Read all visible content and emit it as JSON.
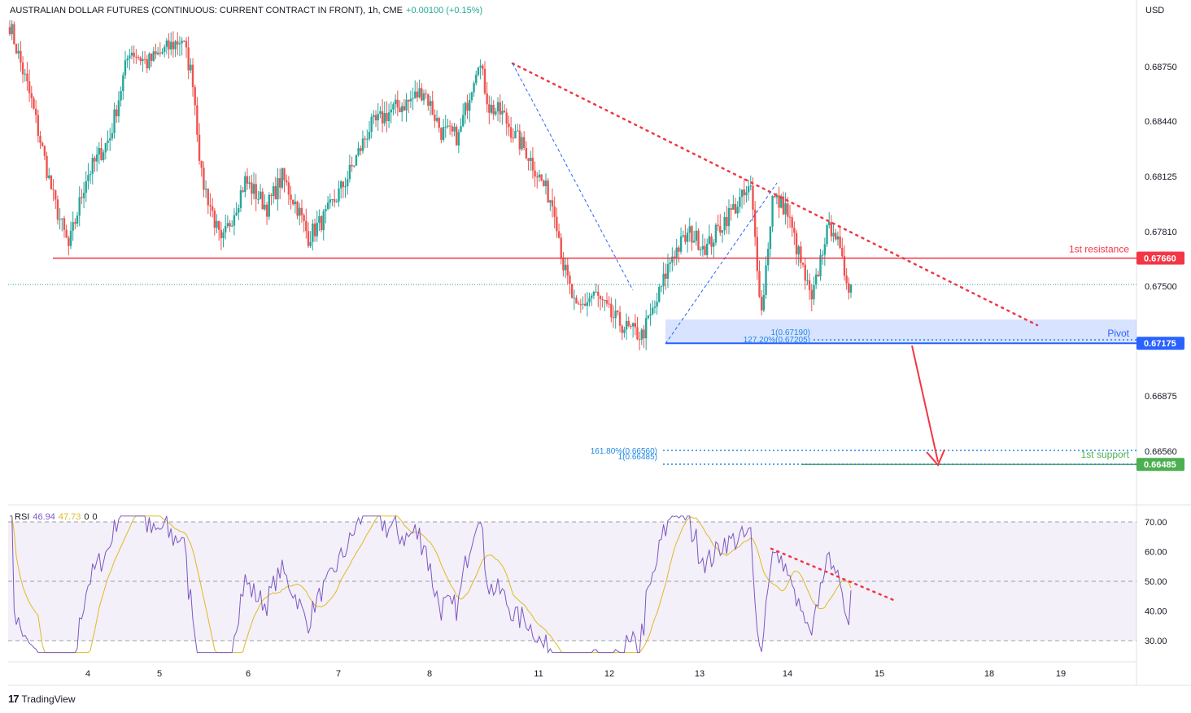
{
  "header": {
    "title": "AUSTRALIAN DOLLAR FUTURES (CONTINUOUS: CURRENT CONTRACT IN FRONT), 1h, CME",
    "change": "+0.00100 (+0.15%)",
    "currency": "USD"
  },
  "rsi": {
    "label": "RSI",
    "value": "46.94",
    "ma_value": "47.73",
    "extra1": "0",
    "extra2": "0"
  },
  "branding": {
    "name": "TradingView"
  },
  "colors": {
    "up": "#26a69a",
    "down": "#ef5350",
    "resistance": "#f23645",
    "pivot": "#2962ff",
    "support": "#4caf50",
    "rsi_line": "#7e57c2",
    "rsi_ma": "#e0b926",
    "fib": "#1e88e5"
  },
  "chart_data": [
    {
      "type": "candlestick",
      "symbol": "Australian Dollar Futures",
      "timeframe": "1h",
      "x_tick_labels": [
        "4",
        "5",
        "6",
        "7",
        "8",
        "11",
        "12",
        "13",
        "14",
        "15",
        "18",
        "19"
      ],
      "y_tick_labels": [
        "0.68750",
        "0.68440",
        "0.68125",
        "0.67810",
        "0.67500",
        "0.66875",
        "0.66560"
      ],
      "ylim": [
        0.6612,
        0.6906
      ],
      "waypoints": [
        [
          0,
          0.6899
        ],
        [
          10,
          0.6855
        ],
        [
          20,
          0.68
        ],
        [
          27,
          0.6772
        ],
        [
          35,
          0.6812
        ],
        [
          46,
          0.6835
        ],
        [
          55,
          0.6885
        ],
        [
          63,
          0.6877
        ],
        [
          73,
          0.6886
        ],
        [
          79,
          0.6891
        ],
        [
          84,
          0.6868
        ],
        [
          88,
          0.6812
        ],
        [
          93,
          0.6792
        ],
        [
          97,
          0.6773
        ],
        [
          108,
          0.681
        ],
        [
          118,
          0.6795
        ],
        [
          125,
          0.6812
        ],
        [
          132,
          0.6795
        ],
        [
          137,
          0.6778
        ],
        [
          145,
          0.679
        ],
        [
          155,
          0.6812
        ],
        [
          165,
          0.684
        ],
        [
          175,
          0.685
        ],
        [
          183,
          0.6855
        ],
        [
          190,
          0.6862
        ],
        [
          198,
          0.6838
        ],
        [
          206,
          0.6835
        ],
        [
          215,
          0.688
        ],
        [
          220,
          0.6852
        ],
        [
          226,
          0.6848
        ],
        [
          232,
          0.6835
        ],
        [
          237,
          0.6827
        ],
        [
          243,
          0.6812
        ],
        [
          250,
          0.6795
        ],
        [
          254,
          0.6762
        ],
        [
          260,
          0.6735
        ],
        [
          268,
          0.6746
        ],
        [
          276,
          0.6733
        ],
        [
          284,
          0.6725
        ],
        [
          290,
          0.6722
        ],
        [
          296,
          0.6738
        ],
        [
          304,
          0.6768
        ],
        [
          312,
          0.678
        ],
        [
          320,
          0.6772
        ],
        [
          328,
          0.6788
        ],
        [
          336,
          0.68
        ],
        [
          340,
          0.6805
        ],
        [
          345,
          0.6735
        ],
        [
          350,
          0.68
        ],
        [
          356,
          0.6795
        ],
        [
          362,
          0.6768
        ],
        [
          368,
          0.674
        ],
        [
          374,
          0.6778
        ],
        [
          378,
          0.6785
        ],
        [
          382,
          0.6762
        ],
        [
          386,
          0.6748
        ]
      ],
      "levels": [
        {
          "name": "1st resistance",
          "value": 0.6766,
          "label": "0.67660"
        },
        {
          "name": "Pivot",
          "value": 0.67175,
          "label": "0.67175"
        },
        {
          "name": "1st support",
          "value": 0.66485,
          "label": "0.66485"
        }
      ],
      "last_price": 0.6751,
      "fibonacci": [
        {
          "label": "1(0.67190)",
          "value": 0.6719
        },
        {
          "label": "127.20%(0.67205)",
          "value": 0.67205
        },
        {
          "label": "161.80%(0.66560)",
          "value": 0.6656
        },
        {
          "label": "1(0.66485)",
          "value": 0.66485
        }
      ],
      "annotations": [
        "1st resistance",
        "Pivot",
        "1st support"
      ]
    },
    {
      "type": "line",
      "name": "RSI",
      "ylim": [
        26,
        72
      ],
      "y_tick_labels": [
        "70.00",
        "60.00",
        "50.00",
        "40.00",
        "30.00"
      ],
      "bands": [
        30,
        50,
        70
      ],
      "last_value": 46.94,
      "last_ma_value": 47.73
    }
  ]
}
